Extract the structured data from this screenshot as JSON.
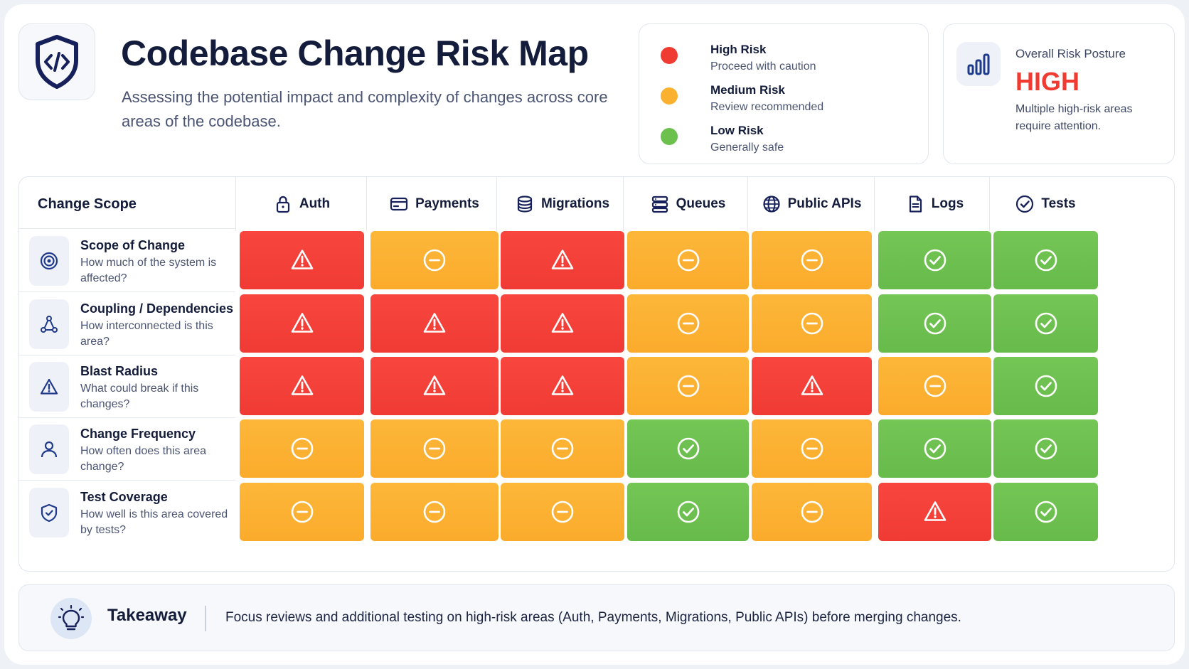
{
  "header": {
    "title": "Codebase Change Risk Map",
    "subtitle": "Assessing the potential impact and complexity of changes across core areas of the codebase.",
    "logo_icon": "shield-code-icon"
  },
  "legend": [
    {
      "label": "High Risk",
      "desc": "Proceed with caution",
      "color": "#ef3b32"
    },
    {
      "label": "Medium Risk",
      "desc": "Review recommended",
      "color": "#fbb130"
    },
    {
      "label": "Low Risk",
      "desc": "Generally safe",
      "color": "#6bc04e"
    }
  ],
  "posture": {
    "label": "Overall Risk Posture",
    "value": "HIGH",
    "desc": "Multiple high-risk areas require attention.",
    "icon": "bar-chart-icon"
  },
  "grid": {
    "scope_title": "Change Scope",
    "columns": [
      {
        "label": "Auth",
        "icon": "lock-icon"
      },
      {
        "label": "Payments",
        "icon": "card-icon"
      },
      {
        "label": "Migrations",
        "icon": "database-icon"
      },
      {
        "label": "Queues",
        "icon": "queue-icon"
      },
      {
        "label": "Public APIs",
        "icon": "globe-icon"
      },
      {
        "label": "Logs",
        "icon": "file-icon"
      },
      {
        "label": "Tests",
        "icon": "check-circle-icon"
      }
    ],
    "rows": [
      {
        "name": "Scope of Change",
        "desc": "How much of the system is affected?",
        "icon": "target-icon",
        "cells": [
          "high",
          "medium",
          "high",
          "medium",
          "medium",
          "low",
          "low"
        ]
      },
      {
        "name": "Coupling / Dependencies",
        "desc": "How interconnected is this area?",
        "icon": "network-icon",
        "cells": [
          "high",
          "high",
          "high",
          "medium",
          "medium",
          "low",
          "low"
        ]
      },
      {
        "name": "Blast Radius",
        "desc": "What could break if this changes?",
        "icon": "warning-icon",
        "cells": [
          "high",
          "high",
          "high",
          "medium",
          "high",
          "medium",
          "low"
        ]
      },
      {
        "name": "Change Frequency",
        "desc": "How often does this area change?",
        "icon": "user-icon",
        "cells": [
          "medium",
          "medium",
          "medium",
          "low",
          "medium",
          "low",
          "low"
        ]
      },
      {
        "name": "Test Coverage",
        "desc": "How well is this area covered by tests?",
        "icon": "shield-check-icon",
        "cells": [
          "medium",
          "medium",
          "medium",
          "low",
          "medium",
          "high",
          "low"
        ]
      }
    ]
  },
  "takeaway": {
    "title": "Takeaway",
    "text": "Focus reviews and additional testing on high-risk areas (Auth, Payments, Migrations, Public APIs) before merging changes.",
    "icon": "lightbulb-icon"
  }
}
